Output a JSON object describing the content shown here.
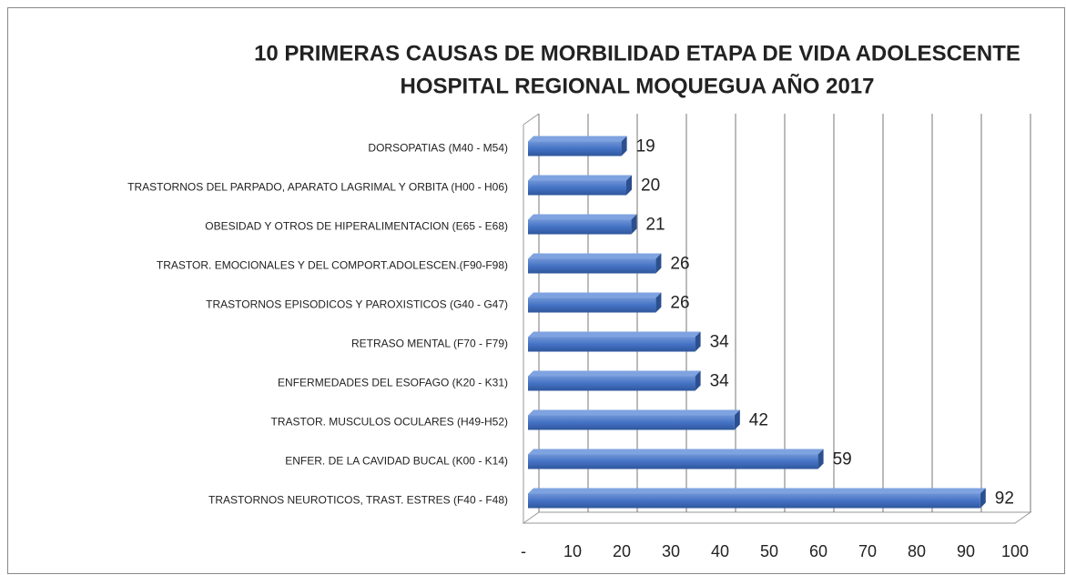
{
  "chart_data": {
    "type": "bar3d_horizontal",
    "title": [
      "10 PRIMERAS CAUSAS DE MORBILIDAD ETAPA DE VIDA ADOLESCENTE",
      "HOSPITAL REGIONAL MOQUEGUA AÑO 2017"
    ],
    "categories": [
      "DORSOPATIAS (M40 - M54)",
      "TRASTORNOS DEL PARPADO, APARATO LAGRIMAL Y ORBITA (H00 - H06)",
      "OBESIDAD Y OTROS DE HIPERALIMENTACION (E65 - E68)",
      "TRASTOR. EMOCIONALES Y DEL COMPORT.ADOLESCEN.(F90-F98)",
      "TRASTORNOS EPISODICOS Y PAROXISTICOS (G40 - G47)",
      "RETRASO MENTAL (F70 - F79)",
      "ENFERMEDADES DEL ESOFAGO (K20 - K31)",
      "TRASTOR. MUSCULOS OCULARES (H49-H52)",
      "ENFER. DE LA CAVIDAD BUCAL  (K00 - K14)",
      "TRASTORNOS NEUROTICOS, TRAST. ESTRES (F40 - F48)"
    ],
    "values": [
      19,
      20,
      21,
      26,
      26,
      34,
      34,
      42,
      59,
      92
    ],
    "color": "#4472c4",
    "xlim": [
      0,
      100
    ],
    "xticks": [
      {
        "value": 0,
        "label": "-"
      },
      10,
      20,
      30,
      40,
      50,
      60,
      70,
      80,
      90,
      100
    ],
    "grid": true
  }
}
